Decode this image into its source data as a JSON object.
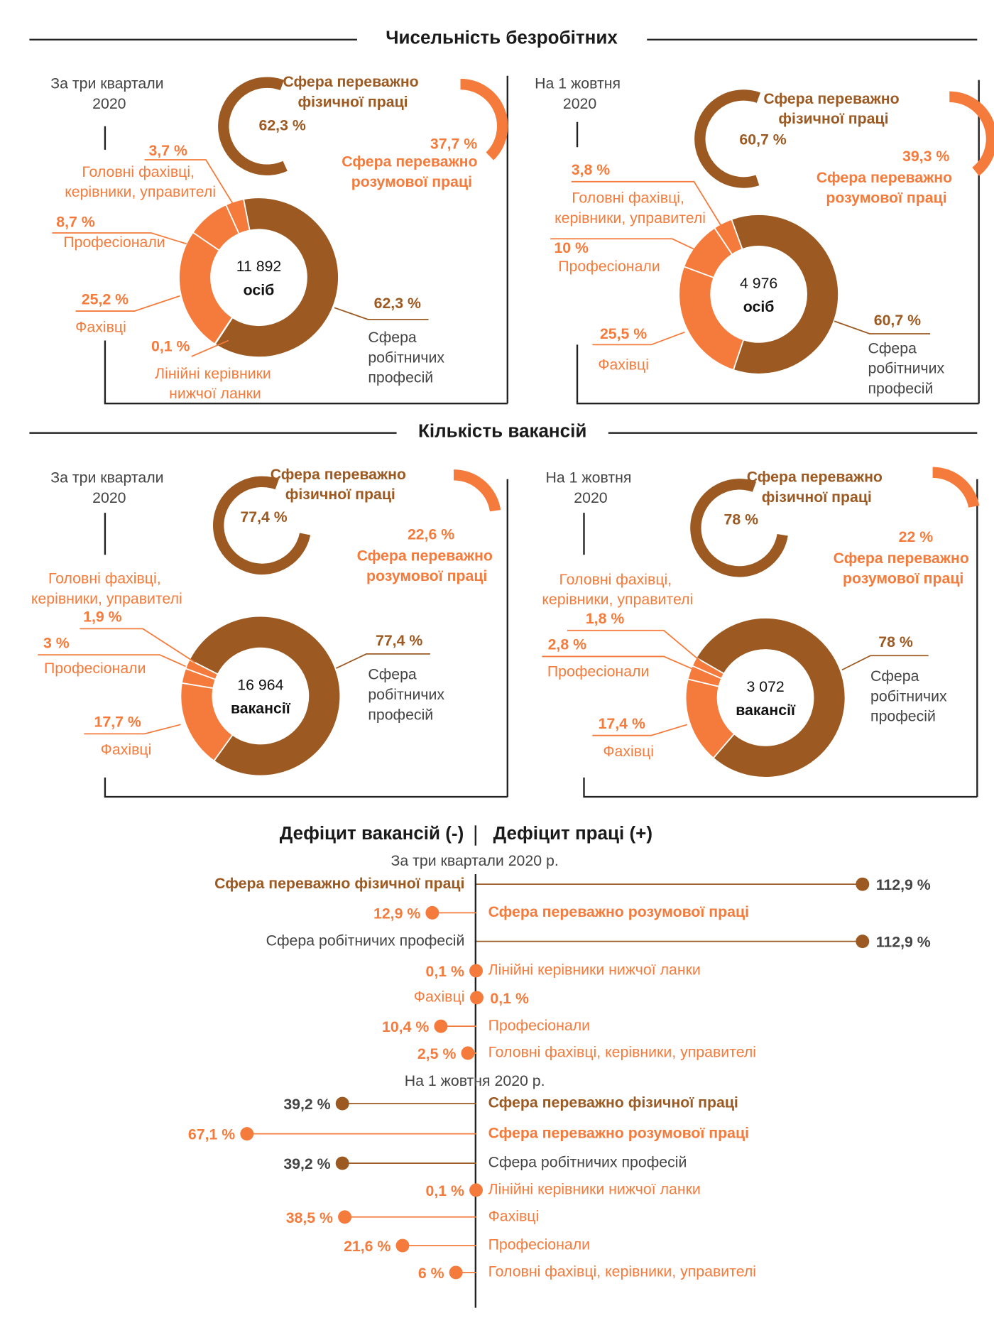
{
  "headers": [
    "Чисельність безробітних",
    "Кількість вакансій"
  ],
  "chart_data": [
    {
      "type": "donut",
      "period": "За три квартали 2020 р.",
      "total": "11 892",
      "unit": "осіб",
      "categories": [
        "Сфера робітничих професій",
        "Лінійні керівники нижчої ланки",
        "Фахівці",
        "Професіонали",
        "Головні фахівці, керівники, управителі"
      ],
      "values": [
        62.3,
        0.1,
        25.2,
        8.7,
        3.7
      ],
      "value_labels": [
        "62,3 %",
        "0,1 %",
        "25,2 %",
        "8,7 %",
        "3,7 %"
      ],
      "colors": [
        "#9c5a22",
        "#f47b3b",
        "#f47b3b",
        "#f47b3b",
        "#f47b3b"
      ],
      "spheres": {
        "categories": [
          "Сфера переважно фізичної праці",
          "Сфера переважно розумової праці"
        ],
        "values": [
          62.3,
          37.7
        ],
        "value_labels": [
          "62,3 %",
          "37,7 %"
        ],
        "colors": [
          "#9c5a22",
          "#f47b3b"
        ]
      }
    },
    {
      "type": "donut",
      "period": "На 1 жовтня 2020 р.",
      "total": "4 976",
      "unit": "осіб",
      "categories": [
        "Сфера робітничих професій",
        "Фахівці",
        "Професіонали",
        "Головні фахівці, керівники, управителі"
      ],
      "values": [
        60.7,
        25.5,
        10,
        3.8
      ],
      "value_labels": [
        "60,7 %",
        "25,5 %",
        "10 %",
        "3,8 %"
      ],
      "colors": [
        "#9c5a22",
        "#f47b3b",
        "#f47b3b",
        "#f47b3b"
      ],
      "spheres": {
        "categories": [
          "Сфера переважно фізичної праці",
          "Сфера переважно розумової праці"
        ],
        "values": [
          60.7,
          39.3
        ],
        "value_labels": [
          "60,7 %",
          "39,3 %"
        ],
        "colors": [
          "#9c5a22",
          "#f47b3b"
        ]
      }
    },
    {
      "type": "donut",
      "period": "За три квартали 2020 р.",
      "total": "16 964",
      "unit": "вакансії",
      "categories": [
        "Сфера робітничих професій",
        "Фахівці",
        "Професіонали",
        "Головні фахівці, керівники, управителі"
      ],
      "values": [
        77.4,
        17.7,
        3,
        1.9
      ],
      "value_labels": [
        "77,4 %",
        "17,7 %",
        "3 %",
        "1,9 %"
      ],
      "colors": [
        "#9c5a22",
        "#f47b3b",
        "#f47b3b",
        "#f47b3b"
      ],
      "spheres": {
        "categories": [
          "Сфера переважно фізичної праці",
          "Сфера переважно розумової праці"
        ],
        "values": [
          77.4,
          22.6
        ],
        "value_labels": [
          "77,4 %",
          "22,6 %"
        ],
        "colors": [
          "#9c5a22",
          "#f47b3b"
        ]
      }
    },
    {
      "type": "donut",
      "period": "На 1 жовтня 2020 р.",
      "total": "3 072",
      "unit": "вакансії",
      "categories": [
        "Сфера робітничих професій",
        "Фахівці",
        "Професіонали",
        "Головні фахівці, керівники, управителі"
      ],
      "values": [
        78,
        17.4,
        2.8,
        1.8
      ],
      "value_labels": [
        "78 %",
        "17,4 %",
        "2,8 %",
        "1,8 %"
      ],
      "colors": [
        "#9c5a22",
        "#f47b3b",
        "#f47b3b",
        "#f47b3b"
      ],
      "spheres": {
        "categories": [
          "Сфера переважно фізичної праці",
          "Сфера переважно розумової праці"
        ],
        "values": [
          78,
          22
        ],
        "value_labels": [
          "78 %",
          "22 %"
        ],
        "colors": [
          "#9c5a22",
          "#f47b3b"
        ]
      }
    },
    {
      "type": "diverging-dot",
      "labels": [
        "Дефіцит вакансій (-)",
        "Дефіцит праці (+)"
      ],
      "colors": [
        "#9c5a22",
        "#f47b3b",
        "#9c5a22",
        "#f47b3b",
        "#f47b3b",
        "#f47b3b",
        "#f47b3b"
      ],
      "groups": [
        {
          "title": "За три квартали 2020 р.",
          "categories": [
            "Сфера переважно фізичної праці",
            "Сфера переважно розумової праці",
            "Сфера робітничих професій",
            "Лінійні керівники нижчої ланки",
            "Фахівці",
            "Професіонали",
            "Головні фахівці, керівники, управителі"
          ],
          "values": [
            112.9,
            -12.9,
            112.9,
            -0.1,
            0.1,
            -10.4,
            -2.5
          ],
          "value_labels": [
            "112,9 %",
            "12,9 %",
            "112,9 %",
            "0,1 %",
            "0,1 %",
            "10,4 %",
            "2,5 %"
          ]
        },
        {
          "title": "На 1 жовтня 2020 р.",
          "categories": [
            "Сфера переважно фізичної праці",
            "Сфера переважно розумової праці",
            "Сфера робітничих професій",
            "Лінійні керівники нижчої ланки",
            "Фахівці",
            "Професіонали",
            "Головні фахівці, керівники, управителі"
          ],
          "values": [
            -39.2,
            -67.1,
            -39.2,
            -0.1,
            -38.5,
            -21.6,
            -6
          ],
          "value_labels": [
            "39,2 %",
            "67,1 %",
            "39,2 %",
            "0,1 %",
            "38,5 %",
            "21,6 %",
            "6 %"
          ]
        }
      ]
    }
  ]
}
